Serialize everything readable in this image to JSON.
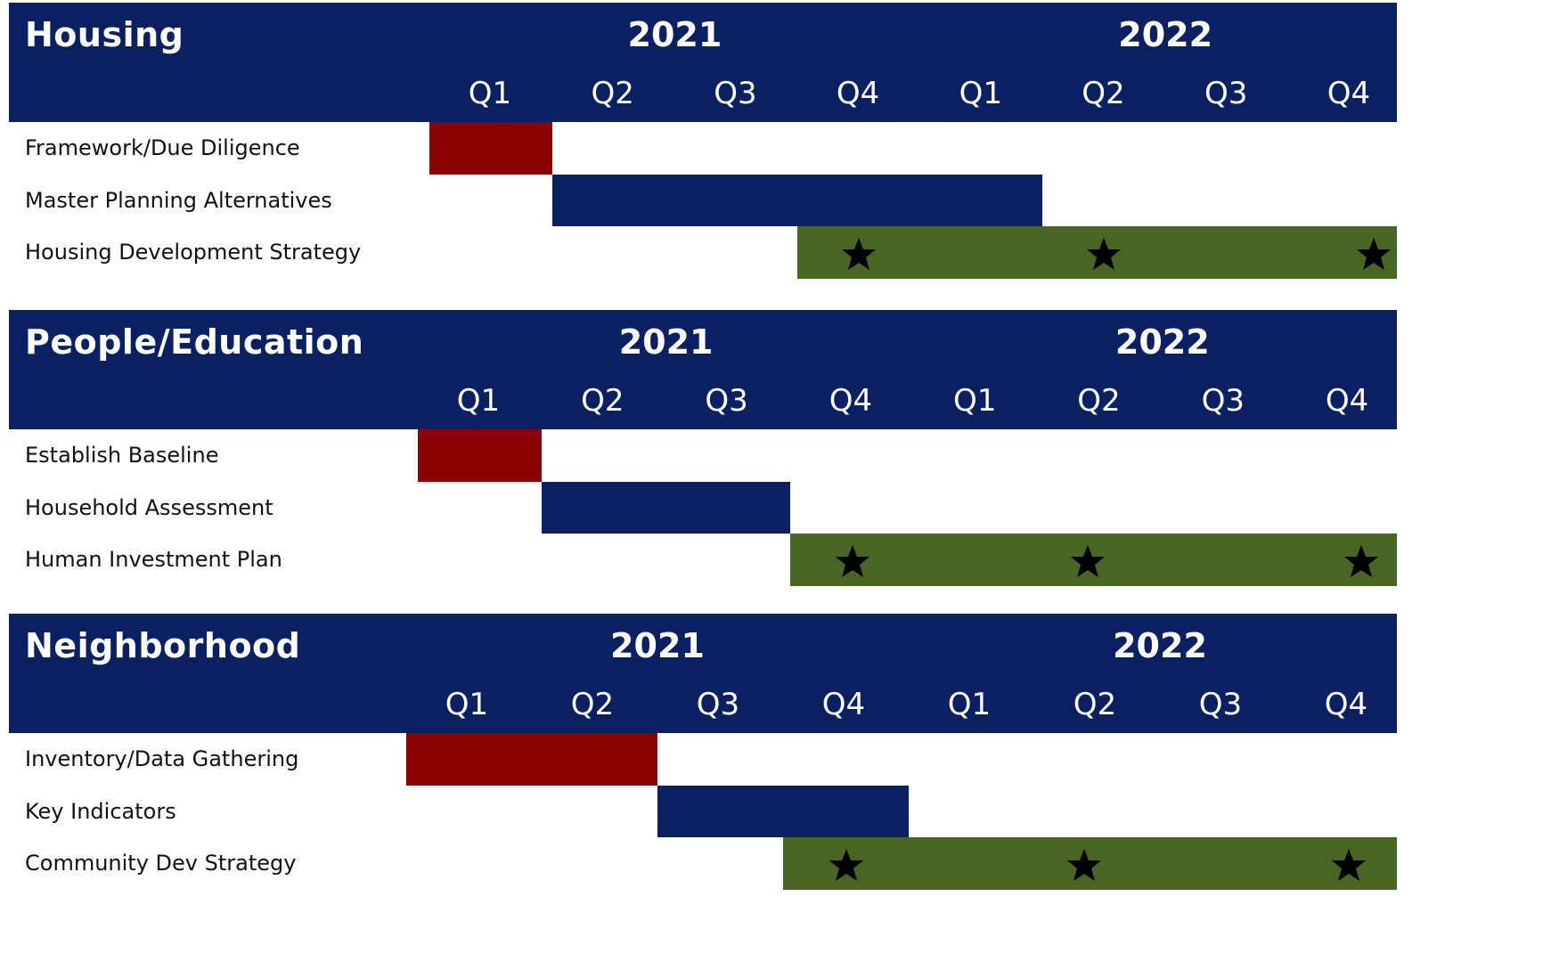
{
  "colors": {
    "header_bg": "#0b2061",
    "phase1": "#8b0000",
    "phase2": "#0b2061",
    "phase3": "#4a6423",
    "star": "#000000"
  },
  "chart_data": [
    {
      "type": "gantt",
      "title": "Housing",
      "years": [
        "2021",
        "2022"
      ],
      "quarters": [
        "Q1",
        "Q2",
        "Q3",
        "Q4",
        "Q1",
        "Q2",
        "Q3",
        "Q4"
      ],
      "tasks": [
        {
          "label": "Framework/Due Diligence",
          "start": 0,
          "end": 1,
          "phase": "phase1",
          "milestones": []
        },
        {
          "label": "Master Planning Alternatives",
          "start": 1,
          "end": 5,
          "phase": "phase2",
          "milestones": []
        },
        {
          "label": "Housing Development Strategy",
          "start": 3,
          "end": 8,
          "phase": "phase3",
          "milestones": [
            3.5,
            5.5,
            7.7
          ],
          "milestone_icon": "star-icon"
        }
      ]
    },
    {
      "type": "gantt",
      "title": "People/Education",
      "years": [
        "2021",
        "2022"
      ],
      "quarters": [
        "Q1",
        "Q2",
        "Q3",
        "Q4",
        "Q1",
        "Q2",
        "Q3",
        "Q4"
      ],
      "tasks": [
        {
          "label": "Establish Baseline",
          "start": 0,
          "end": 1,
          "phase": "phase1",
          "milestones": []
        },
        {
          "label": "Household Assessment",
          "start": 1,
          "end": 3,
          "phase": "phase2",
          "milestones": []
        },
        {
          "label": "Human Investment Plan",
          "start": 3,
          "end": 8,
          "phase": "phase3",
          "milestones": [
            3.5,
            5.4,
            7.6
          ],
          "milestone_icon": "star-icon"
        }
      ]
    },
    {
      "type": "gantt",
      "title": "Neighborhood",
      "years": [
        "2021",
        "2022"
      ],
      "quarters": [
        "Q1",
        "Q2",
        "Q3",
        "Q4",
        "Q1",
        "Q2",
        "Q3",
        "Q4"
      ],
      "tasks": [
        {
          "label": "Inventory/Data Gathering",
          "start": 0,
          "end": 2,
          "phase": "phase1",
          "milestones": []
        },
        {
          "label": "Key Indicators",
          "start": 2,
          "end": 4,
          "phase": "phase2",
          "milestones": []
        },
        {
          "label": "Community Dev Strategy",
          "start": 3,
          "end": 8,
          "phase": "phase3",
          "milestones": [
            3.5,
            5.4,
            7.5
          ],
          "milestone_icon": "star-icon"
        }
      ]
    }
  ]
}
